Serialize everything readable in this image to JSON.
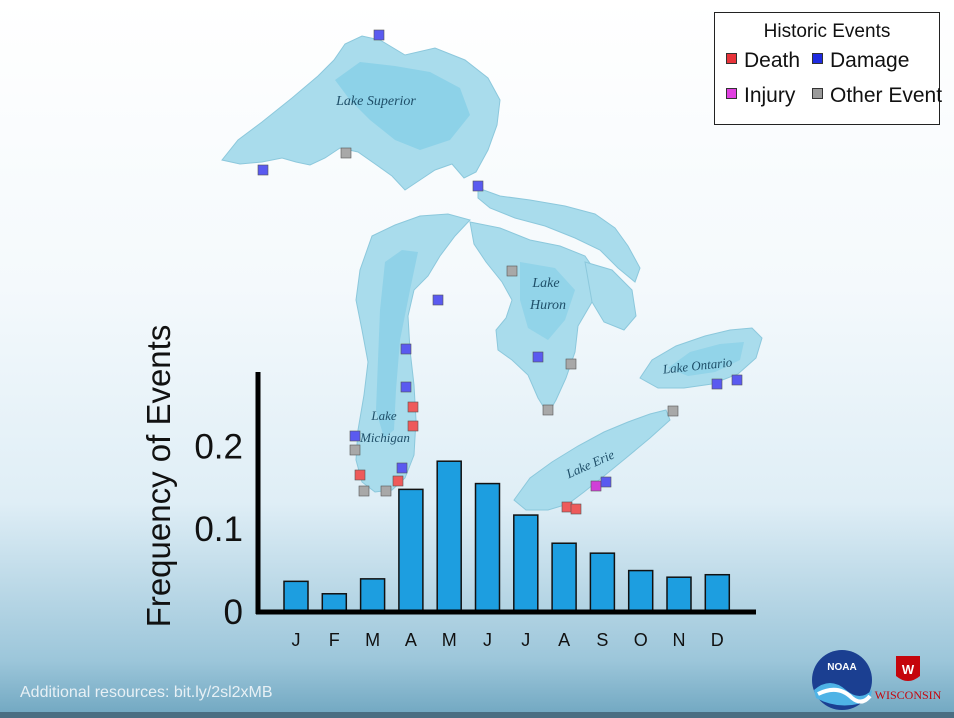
{
  "legend": {
    "title": "Historic Events",
    "items": [
      {
        "label": "Death",
        "color": "#e8333a"
      },
      {
        "label": "Damage",
        "color": "#1f2be0"
      },
      {
        "label": "Injury",
        "color": "#e040e0"
      },
      {
        "label": "Other Event",
        "color": "#9a9a9a"
      }
    ]
  },
  "map_labels": {
    "superior": "Lake Superior",
    "michigan_1": "Lake",
    "michigan_2": "Michigan",
    "huron_1": "Lake",
    "huron_2": "Huron",
    "ontario": "Lake Ontario",
    "erie": "Lake Erie"
  },
  "footer": "Additional resources: bit.ly/2sl2xMB",
  "logos": {
    "noaa": "NOAA",
    "wisconsin": "WISCONSIN"
  },
  "colors": {
    "bar": "#1d9ee0",
    "lake": "#a9dcec",
    "lake_deep": "#7ccbe6"
  },
  "chart_data": {
    "type": "bar",
    "categories": [
      "J",
      "F",
      "M",
      "A",
      "M",
      "J",
      "J",
      "A",
      "S",
      "O",
      "N",
      "D"
    ],
    "values": [
      0.037,
      0.022,
      0.04,
      0.148,
      0.182,
      0.155,
      0.117,
      0.083,
      0.071,
      0.05,
      0.042,
      0.045
    ],
    "ylabel": "Frequency of Events",
    "xlabel": "",
    "yticks": [
      "0",
      "0.1",
      "0.2"
    ],
    "ytick_values": [
      0,
      0.1,
      0.2
    ],
    "ylim": [
      0,
      0.28
    ]
  }
}
